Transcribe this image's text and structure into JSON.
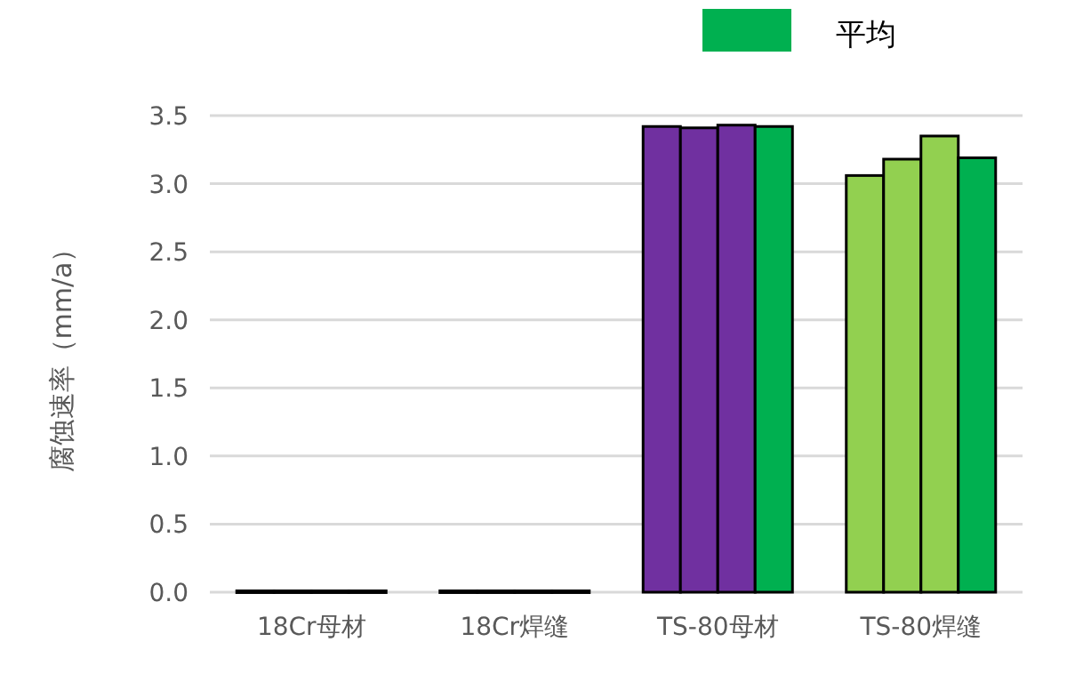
{
  "chart_data": {
    "type": "bar",
    "ylabel": "腐蚀速率（mm/a）",
    "categories": [
      "18Cr母材",
      "18Cr焊缝",
      "TS-80母材",
      "TS-80焊缝"
    ],
    "series": [
      {
        "colors": [
          "#3f6fad",
          "#c99a06",
          "#7030a0",
          "#92d050"
        ],
        "values": [
          0.01,
          0.01,
          3.42,
          3.06
        ]
      },
      {
        "colors": [
          "#3f6fad",
          "#c99a06",
          "#7030a0",
          "#92d050"
        ],
        "values": [
          0.01,
          0.01,
          3.41,
          3.18
        ]
      },
      {
        "colors": [
          "#3f6fad",
          "#c99a06",
          "#7030a0",
          "#92d050"
        ],
        "values": [
          0.01,
          0.01,
          3.43,
          3.35
        ]
      },
      {
        "name": "平均",
        "color": "#00b050",
        "values": [
          0.01,
          0.01,
          3.42,
          3.19
        ]
      }
    ],
    "ylim": [
      0,
      3.5
    ],
    "yticks": [
      {
        "value": 0,
        "label": "0.0"
      },
      {
        "value": 0.5,
        "label": "0.5"
      },
      {
        "value": 1,
        "label": "1.0"
      },
      {
        "value": 1.5,
        "label": "1.5"
      },
      {
        "value": 2,
        "label": "2.0"
      },
      {
        "value": 2.5,
        "label": "2.5"
      },
      {
        "value": 3,
        "label": "3.0"
      },
      {
        "value": 3.5,
        "label": "3.5"
      }
    ],
    "grid": "y",
    "legend": "top right"
  }
}
